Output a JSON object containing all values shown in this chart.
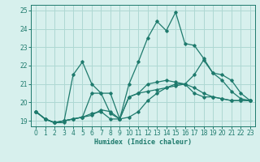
{
  "xlabel": "Humidex (Indice chaleur)",
  "background_color": "#d7f0ed",
  "grid_color": "#aed8d3",
  "line_color": "#1e7a6d",
  "xlim": [
    -0.5,
    23.5
  ],
  "ylim": [
    18.7,
    25.3
  ],
  "xticks": [
    0,
    1,
    2,
    3,
    4,
    5,
    6,
    7,
    8,
    9,
    10,
    11,
    12,
    13,
    14,
    15,
    16,
    17,
    18,
    19,
    20,
    21,
    22,
    23
  ],
  "yticks": [
    19,
    20,
    21,
    22,
    23,
    24,
    25
  ],
  "series": [
    [
      19.5,
      19.1,
      18.9,
      18.9,
      21.5,
      22.2,
      21.0,
      20.5,
      20.5,
      19.1,
      21.0,
      22.2,
      23.5,
      24.4,
      23.9,
      24.9,
      23.2,
      23.1,
      22.4,
      21.6,
      21.2,
      20.6,
      20.2,
      20.1
    ],
    [
      19.5,
      19.1,
      18.9,
      19.0,
      19.1,
      19.2,
      20.5,
      20.5,
      19.4,
      19.1,
      20.3,
      20.5,
      21.0,
      21.1,
      21.2,
      21.1,
      21.0,
      21.5,
      22.3,
      21.6,
      21.5,
      21.2,
      20.5,
      20.1
    ],
    [
      19.5,
      19.1,
      18.9,
      19.0,
      19.1,
      19.2,
      19.3,
      19.6,
      19.5,
      19.1,
      20.3,
      20.5,
      20.6,
      20.7,
      20.8,
      20.9,
      21.0,
      20.8,
      20.5,
      20.3,
      20.2,
      20.1,
      20.1,
      20.1
    ],
    [
      19.5,
      19.1,
      18.9,
      19.0,
      19.1,
      19.2,
      19.4,
      19.5,
      19.1,
      19.1,
      19.2,
      19.5,
      20.1,
      20.5,
      20.8,
      21.0,
      21.0,
      20.5,
      20.3,
      20.3,
      20.2,
      20.1,
      20.1,
      20.1
    ]
  ]
}
